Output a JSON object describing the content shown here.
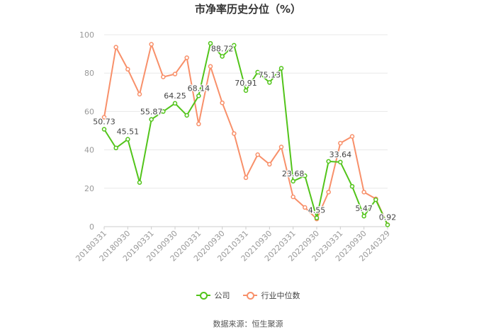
{
  "title": "市净率历史分位（%）",
  "source": "数据来源：恒生聚源",
  "colors": {
    "company": "#52c41a",
    "industry": "#f8906a",
    "grid": "#e8e8e8",
    "axis_text": "#999999",
    "label": "#444444"
  },
  "legend": [
    {
      "name": "公司",
      "color": "#52c41a"
    },
    {
      "name": "行业中位数",
      "color": "#f8906a"
    }
  ],
  "chart_data": {
    "type": "line",
    "title": "市净率历史分位（%）",
    "ylim": [
      0,
      100
    ],
    "yticks": [
      0,
      20,
      40,
      60,
      80,
      100
    ],
    "grid": true,
    "legend_position": "bottom",
    "x_tick_labels": [
      "20180331",
      "20180930",
      "20190331",
      "20190930",
      "20200331",
      "20200930",
      "20210331",
      "20210930",
      "20220331",
      "20220930",
      "20230331",
      "20230930",
      "20240329"
    ],
    "x": [
      "20180331",
      "20180630",
      "20180930",
      "20181231",
      "20190331",
      "20190630",
      "20190930",
      "20191231",
      "20200331",
      "20200630",
      "20200930",
      "20201231",
      "20210331",
      "20210630",
      "20210930",
      "20211231",
      "20220331",
      "20220630",
      "20220930",
      "20221231",
      "20230331",
      "20230630",
      "20230930",
      "20231231",
      "20240329"
    ],
    "series": [
      {
        "name": "公司",
        "color": "#52c41a",
        "values": [
          50.73,
          41,
          45.51,
          23,
          55.87,
          60,
          64.25,
          58,
          68.14,
          95.5,
          88.72,
          94.5,
          70.91,
          80.5,
          75.13,
          82.5,
          23.68,
          26.5,
          4.55,
          34,
          33.64,
          21,
          5.47,
          14,
          0.92
        ],
        "labels": {
          "0": "50.73",
          "2": "45.51",
          "4": "55.87",
          "6": "64.25",
          "8": "68.14",
          "10": "88.72",
          "12": "70.91",
          "14": "75.13",
          "16": "23.68",
          "18": "4.55",
          "20": "33.64",
          "22": "5.47",
          "24": "0.92"
        }
      },
      {
        "name": "行业中位数",
        "color": "#f8906a",
        "values": [
          57,
          93.5,
          82,
          69,
          95,
          78,
          79.5,
          88,
          53.5,
          83.5,
          64.5,
          48.5,
          25.5,
          37.5,
          32.5,
          41.5,
          15.5,
          10,
          4,
          18,
          43.5,
          47,
          18,
          14.5,
          1
        ]
      }
    ]
  }
}
